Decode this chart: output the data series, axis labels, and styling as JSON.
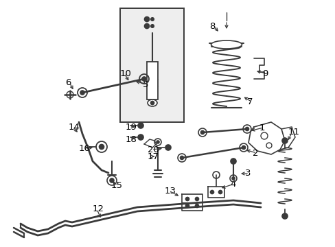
{
  "bg_color": "#ffffff",
  "line_color": "#3a3a3a",
  "label_color": "#000000",
  "fig_width": 4.89,
  "fig_height": 3.6,
  "dpi": 100,
  "font_size": 9.5
}
